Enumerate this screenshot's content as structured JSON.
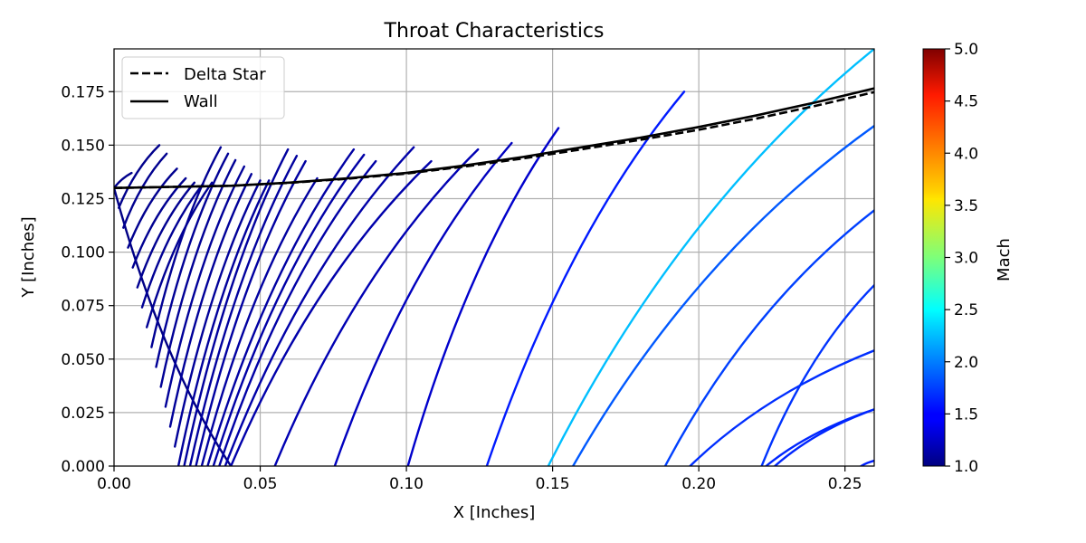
{
  "chart_data": {
    "type": "line",
    "title": "Throat Characteristics",
    "xlabel": "X [Inches]",
    "ylabel": "Y [Inches]",
    "xlim": [
      0.0,
      0.26
    ],
    "ylim": [
      0.0,
      0.195
    ],
    "xticks": [
      0.0,
      0.05,
      0.1,
      0.15,
      0.2,
      0.25
    ],
    "xtick_labels": [
      "0.00",
      "0.05",
      "0.10",
      "0.15",
      "0.20",
      "0.25"
    ],
    "yticks": [
      0.0,
      0.025,
      0.05,
      0.075,
      0.1,
      0.125,
      0.15,
      0.175
    ],
    "ytick_labels": [
      "0.000",
      "0.025",
      "0.050",
      "0.075",
      "0.100",
      "0.125",
      "0.150",
      "0.175"
    ],
    "grid": true,
    "legend": {
      "position": "top-left",
      "entries": [
        {
          "label": "Delta Star",
          "style": "dashed",
          "color": "#000000"
        },
        {
          "label": "Wall",
          "style": "solid",
          "color": "#000000"
        }
      ]
    },
    "colorbar": {
      "label": "Mach",
      "colormap": "jet",
      "range": [
        1.0,
        5.0
      ],
      "ticks": [
        1.0,
        1.5,
        2.0,
        2.5,
        3.0,
        3.5,
        4.0,
        4.5,
        5.0
      ],
      "tick_labels": [
        "1.0",
        "1.5",
        "2.0",
        "2.5",
        "3.0",
        "3.5",
        "4.0",
        "4.5",
        "5.0"
      ]
    },
    "series": [
      {
        "name": "Wall",
        "style": "solid",
        "color": "#000000",
        "x": [
          0.0,
          0.02,
          0.04,
          0.06,
          0.08,
          0.1,
          0.12,
          0.14,
          0.16,
          0.18,
          0.2,
          0.22,
          0.24,
          0.26
        ],
        "y": [
          0.13,
          0.1305,
          0.131,
          0.1325,
          0.1345,
          0.137,
          0.1405,
          0.1445,
          0.149,
          0.1535,
          0.1585,
          0.164,
          0.17,
          0.1765
        ]
      },
      {
        "name": "Delta Star",
        "style": "dashed",
        "color": "#000000",
        "x": [
          0.0,
          0.02,
          0.04,
          0.06,
          0.08,
          0.1,
          0.12,
          0.14,
          0.16,
          0.18,
          0.2,
          0.22,
          0.24,
          0.26
        ],
        "y": [
          0.13,
          0.1305,
          0.131,
          0.1324,
          0.1343,
          0.1367,
          0.14,
          0.1438,
          0.1481,
          0.1525,
          0.1572,
          0.1625,
          0.1684,
          0.1748
        ]
      }
    ],
    "throat_characteristics": [
      {
        "x": [
          0.0,
          0.006
        ],
        "y": [
          0.13,
          0.137
        ],
        "mach": 1.05
      },
      {
        "x": [
          0.0016,
          0.0155
        ],
        "y": [
          0.1207,
          0.15
        ],
        "mach": 1.05
      },
      {
        "x": [
          0.0032,
          0.018
        ],
        "y": [
          0.1114,
          0.146
        ],
        "mach": 1.06
      },
      {
        "x": [
          0.0048,
          0.0215
        ],
        "y": [
          0.1021,
          0.139
        ],
        "mach": 1.06
      },
      {
        "x": [
          0.0064,
          0.0245
        ],
        "y": [
          0.0928,
          0.1345
        ],
        "mach": 1.07
      },
      {
        "x": [
          0.008,
          0.0275
        ],
        "y": [
          0.0835,
          0.1325
        ],
        "mach": 1.07
      },
      {
        "x": [
          0.0096,
          0.0305
        ],
        "y": [
          0.0742,
          0.132
        ],
        "mach": 1.08
      },
      {
        "x": [
          0.0112,
          0.0335
        ],
        "y": [
          0.0649,
          0.1325
        ],
        "mach": 1.08
      },
      {
        "x": [
          0.0128,
          0.0365
        ],
        "y": [
          0.0556,
          0.149
        ],
        "mach": 1.08
      },
      {
        "x": [
          0.0144,
          0.039
        ],
        "y": [
          0.0463,
          0.146
        ],
        "mach": 1.09
      },
      {
        "x": [
          0.016,
          0.0415
        ],
        "y": [
          0.037,
          0.143
        ],
        "mach": 1.09
      },
      {
        "x": [
          0.0176,
          0.0445
        ],
        "y": [
          0.0277,
          0.14
        ],
        "mach": 1.1
      },
      {
        "x": [
          0.0192,
          0.047
        ],
        "y": [
          0.0184,
          0.1365
        ],
        "mach": 1.1
      },
      {
        "x": [
          0.0208,
          0.05
        ],
        "y": [
          0.0091,
          0.1335
        ],
        "mach": 1.1
      },
      {
        "x": [
          0.022,
          0.053
        ],
        "y": [
          0.0,
          0.1335
        ],
        "mach": 1.11
      },
      {
        "x": [
          0.024,
          0.0595
        ],
        "y": [
          0.0,
          0.148
        ],
        "mach": 1.12
      },
      {
        "x": [
          0.026,
          0.0625
        ],
        "y": [
          0.0,
          0.145
        ],
        "mach": 1.12
      },
      {
        "x": [
          0.028,
          0.0655
        ],
        "y": [
          0.0,
          0.1425
        ],
        "mach": 1.13
      },
      {
        "x": [
          0.03,
          0.0695
        ],
        "y": [
          0.0,
          0.1345
        ],
        "mach": 1.13
      },
      {
        "x": [
          0.032,
          0.082
        ],
        "y": [
          0.0,
          0.148
        ],
        "mach": 1.14
      },
      {
        "x": [
          0.034,
          0.0855
        ],
        "y": [
          0.0,
          0.1455
        ],
        "mach": 1.15
      },
      {
        "x": [
          0.036,
          0.0895
        ],
        "y": [
          0.0,
          0.1425
        ],
        "mach": 1.15
      },
      {
        "x": [
          0.038,
          0.1025
        ],
        "y": [
          0.0,
          0.149
        ],
        "mach": 1.16
      },
      {
        "x": [
          0.04,
          0.1085
        ],
        "y": [
          0.0,
          0.1425
        ],
        "mach": 1.17
      },
      {
        "x": [
          0.055,
          0.1245
        ],
        "y": [
          0.0,
          0.148
        ],
        "mach": 1.2
      },
      {
        "x": [
          0.0755,
          0.136
        ],
        "y": [
          0.0,
          0.151
        ],
        "mach": 1.25
      },
      {
        "x": [
          0.1005,
          0.152
        ],
        "y": [
          0.0,
          0.158
        ],
        "mach": 1.3
      },
      {
        "x": [
          0.1275,
          0.195
        ],
        "y": [
          0.0,
          0.175
        ],
        "mach": 1.6
      },
      {
        "x": [
          0.157,
          0.26
        ],
        "y": [
          0.0,
          0.159
        ],
        "mach": 1.85
      },
      {
        "x": [
          0.1885,
          0.26
        ],
        "y": [
          0.0,
          0.1195
        ],
        "mach": 1.75
      },
      {
        "x": [
          0.2215,
          0.26
        ],
        "y": [
          0.0,
          0.0845
        ],
        "mach": 1.7
      },
      {
        "x": [
          0.197,
          0.26
        ],
        "y": [
          0.0,
          0.054
        ],
        "mach": 1.68
      },
      {
        "x": [
          0.223,
          0.26
        ],
        "y": [
          0.0,
          0.0265
        ],
        "mach": 1.65
      },
      {
        "x": [
          0.2555,
          0.26
        ],
        "y": [
          0.0,
          0.0025
        ],
        "mach": 1.62
      },
      {
        "x": [
          0.1485,
          0.26
        ],
        "y": [
          0.0,
          0.195
        ],
        "mach": 2.25
      }
    ],
    "reflected_characteristics": [
      {
        "x": [
          0.0,
          0.04
        ],
        "y": [
          0.13,
          0.0
        ],
        "mach": 1.02
      },
      {
        "x": [
          0.226,
          0.26
        ],
        "y": [
          0.0,
          0.0265
        ],
        "mach": 1.65
      }
    ]
  }
}
